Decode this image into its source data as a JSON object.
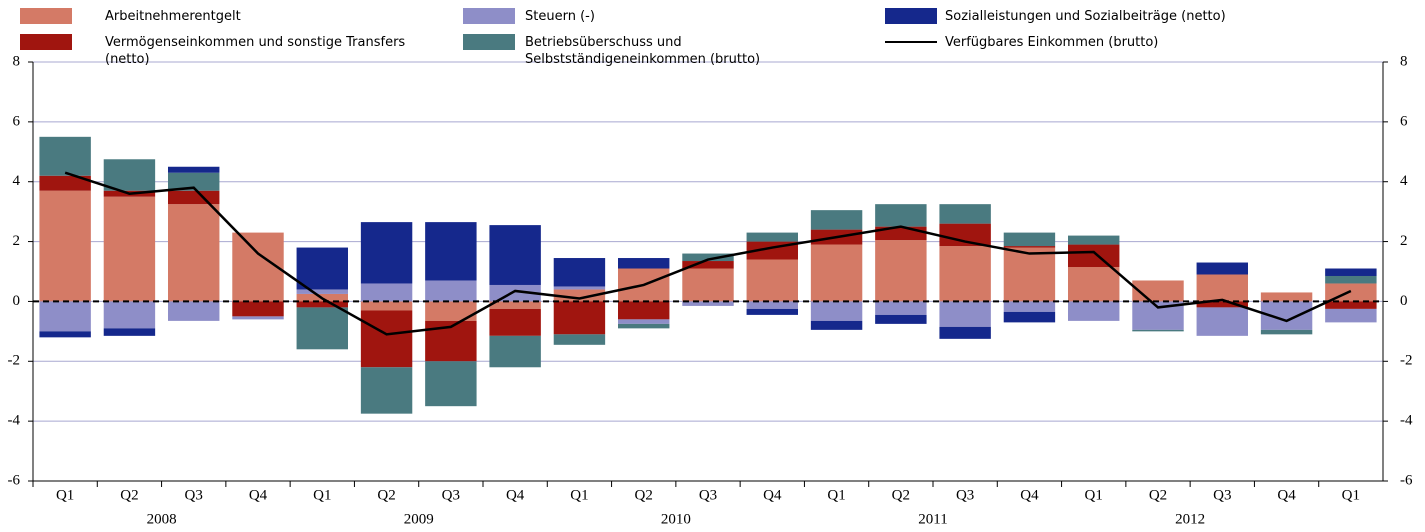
{
  "chart_data": {
    "type": "bar",
    "categories": [
      "Q1",
      "Q2",
      "Q3",
      "Q4",
      "Q1",
      "Q2",
      "Q3",
      "Q4",
      "Q1",
      "Q2",
      "Q3",
      "Q4",
      "Q1",
      "Q2",
      "Q3",
      "Q4",
      "Q1",
      "Q2",
      "Q3",
      "Q4",
      "Q1"
    ],
    "years": [
      "2008",
      "2009",
      "2010",
      "2011",
      "2012"
    ],
    "series": [
      {
        "name": "Arbeitnehmerentgelt",
        "color": "#d47a66",
        "values": [
          3.7,
          3.5,
          3.25,
          2.3,
          0.25,
          -0.3,
          -0.65,
          -0.25,
          0.4,
          1.1,
          1.1,
          1.4,
          1.9,
          2.05,
          1.85,
          1.8,
          1.15,
          0.7,
          0.9,
          0.3,
          0.6
        ]
      },
      {
        "name": "Vermögenseinkommen und sonstige Transfers (netto)",
        "color": "#a0150f",
        "values": [
          0.5,
          0.2,
          0.45,
          -0.5,
          -0.2,
          -1.9,
          -1.35,
          -0.9,
          -1.1,
          -0.6,
          0.25,
          0.6,
          0.5,
          0.45,
          0.75,
          0.05,
          0.75,
          0,
          -0.2,
          0,
          -0.25
        ]
      },
      {
        "name": "Steuern (-)",
        "color": "#8e8ec8",
        "values": [
          -1.0,
          -0.9,
          -0.65,
          -0.1,
          0.15,
          0.6,
          0.7,
          0.55,
          0.1,
          -0.15,
          -0.15,
          -0.25,
          -0.65,
          -0.45,
          -0.85,
          -0.35,
          -0.65,
          -0.95,
          -0.95,
          -0.95,
          -0.45
        ]
      },
      {
        "name": "Betriebsüberschuss und Selbstständigeneinkommen (brutto)",
        "color": "#4a7a80",
        "values": [
          1.3,
          1.05,
          0.6,
          0,
          -1.4,
          -1.55,
          -1.5,
          -1.05,
          -0.35,
          -0.15,
          0.25,
          0.3,
          0.65,
          0.75,
          0.65,
          0.45,
          0.3,
          -0.05,
          0,
          -0.15,
          0.25
        ]
      },
      {
        "name": "Sozialleistungen und Sozialbeiträge (netto)",
        "color": "#15288c",
        "values": [
          -0.2,
          -0.25,
          0.2,
          0,
          1.4,
          2.05,
          1.95,
          2.0,
          0.95,
          0.35,
          0,
          -0.2,
          -0.3,
          -0.3,
          -0.4,
          -0.35,
          0,
          0,
          0.4,
          0,
          0.25
        ]
      }
    ],
    "line": {
      "name": "Verfügbares Einkommen (brutto)",
      "color": "#000000",
      "values": [
        4.3,
        3.6,
        3.8,
        1.6,
        0.1,
        -1.1,
        -0.85,
        0.35,
        0.1,
        0.55,
        1.4,
        1.8,
        2.15,
        2.5,
        2.0,
        1.6,
        1.65,
        -0.2,
        0.05,
        -0.65,
        0.35
      ]
    },
    "ylim": [
      -6,
      8
    ],
    "yticks": [
      -6,
      -4,
      -2,
      0,
      2,
      4,
      6,
      8
    ],
    "grid": true
  }
}
